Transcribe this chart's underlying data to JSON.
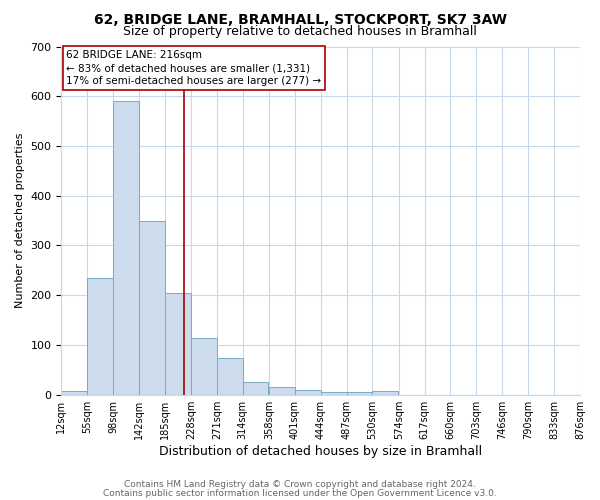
{
  "title": "62, BRIDGE LANE, BRAMHALL, STOCKPORT, SK7 3AW",
  "subtitle": "Size of property relative to detached houses in Bramhall",
  "xlabel": "Distribution of detached houses by size in Bramhall",
  "ylabel": "Number of detached properties",
  "footnote1": "Contains HM Land Registry data © Crown copyright and database right 2024.",
  "footnote2": "Contains public sector information licensed under the Open Government Licence v3.0.",
  "bin_edges": [
    12,
    55,
    98,
    142,
    185,
    228,
    271,
    314,
    358,
    401,
    444,
    487,
    530,
    574,
    617,
    660,
    703,
    746,
    790,
    833,
    876
  ],
  "bar_heights": [
    8,
    235,
    590,
    350,
    205,
    115,
    73,
    25,
    15,
    10,
    6,
    5,
    7,
    0,
    0,
    0,
    0,
    0,
    0,
    0
  ],
  "bar_color": "#ccdcec",
  "bar_edge_color": "#7aaac8",
  "property_size": 216,
  "vline_color": "#aa0000",
  "annotation_text_line1": "62 BRIDGE LANE: 216sqm",
  "annotation_text_line2": "← 83% of detached houses are smaller (1,331)",
  "annotation_text_line3": "17% of semi-detached houses are larger (277) →",
  "annotation_box_color": "#aa0000",
  "annotation_bg": "#ffffff",
  "ylim": [
    0,
    700
  ],
  "background_color": "#ffffff",
  "grid_color": "#c8d8e8",
  "tick_label_fontsize": 7,
  "title_fontsize": 10,
  "subtitle_fontsize": 9,
  "xlabel_fontsize": 9,
  "ylabel_fontsize": 8,
  "footnote_fontsize": 6.5,
  "annotation_fontsize": 7.5
}
